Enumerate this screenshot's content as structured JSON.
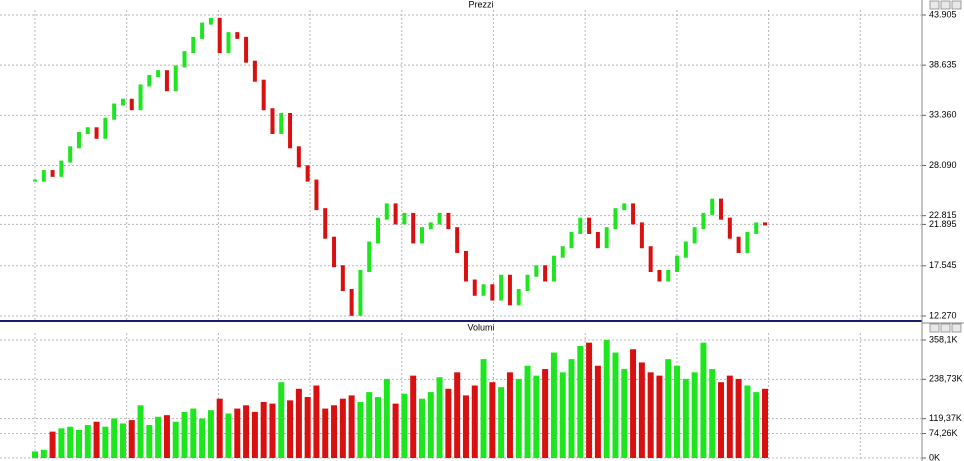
{
  "chart_data": [
    {
      "type": "price",
      "title": "Prezzi",
      "up_color": "#1ee61e",
      "down_color": "#d81010",
      "grid": true,
      "values": [
        26500,
        27500,
        27000,
        28500,
        30000,
        31500,
        32000,
        31000,
        33000,
        34500,
        35000,
        34000,
        36500,
        37500,
        38000,
        36000,
        38500,
        40000,
        41500,
        43000,
        43500,
        40000,
        42000,
        41500,
        39000,
        37000,
        34000,
        31500,
        33500,
        30000,
        28000,
        26500,
        23500,
        20500,
        17500,
        15000,
        12400,
        17000,
        20000,
        22500,
        24000,
        22000,
        23000,
        20000,
        21500,
        22000,
        23000,
        21500,
        19000,
        16000,
        14500,
        15500,
        14000,
        16500,
        13500,
        15000,
        16500,
        17500,
        16000,
        18500,
        19500,
        21000,
        22500,
        21000,
        19500,
        21500,
        23500,
        24000,
        22000,
        19500,
        17000,
        16000,
        17000,
        18500,
        20000,
        21500,
        23000,
        24500,
        22500,
        20500,
        19000,
        21000,
        22000,
        21895
      ],
      "ylim": [
        12270,
        43905
      ],
      "yticks": [
        {
          "value": 43905,
          "label": "43.905"
        },
        {
          "value": 38635,
          "label": "38.635"
        },
        {
          "value": 33360,
          "label": "33.360"
        },
        {
          "value": 28090,
          "label": "28.090"
        },
        {
          "value": 22815,
          "label": "22.815"
        },
        {
          "value": 21895,
          "label": "21.895"
        },
        {
          "value": 17545,
          "label": "17.545"
        },
        {
          "value": 12270,
          "label": "12.270"
        }
      ]
    },
    {
      "type": "volume",
      "title": "Volumi",
      "up_color": "#1ee61e",
      "down_color": "#d81010",
      "grid": true,
      "values": [
        20000,
        25000,
        80000,
        90000,
        95000,
        85000,
        100000,
        110000,
        95000,
        120000,
        105000,
        115000,
        160000,
        100000,
        125000,
        130000,
        110000,
        140000,
        150000,
        120000,
        145000,
        180000,
        135000,
        150000,
        160000,
        140000,
        170000,
        165000,
        230000,
        175000,
        210000,
        185000,
        220000,
        150000,
        160000,
        180000,
        190000,
        170000,
        200000,
        185000,
        240000,
        165000,
        195000,
        250000,
        180000,
        200000,
        245000,
        210000,
        260000,
        190000,
        220000,
        300000,
        230000,
        215000,
        260000,
        240000,
        280000,
        250000,
        270000,
        320000,
        260000,
        300000,
        340000,
        350000,
        280000,
        358000,
        320000,
        270000,
        330000,
        290000,
        260000,
        250000,
        300000,
        280000,
        240000,
        260000,
        350000,
        270000,
        230000,
        250000,
        240000,
        220000,
        200000,
        210000
      ],
      "ylim": [
        0,
        358100
      ],
      "yticks": [
        {
          "value": 358100,
          "label": "358,1K"
        },
        {
          "value": 238730,
          "label": "238,73K"
        },
        {
          "value": 119370,
          "label": "119,37K"
        },
        {
          "value": 74260,
          "label": "74,26K"
        },
        {
          "value": 0,
          "label": "0K"
        }
      ]
    }
  ]
}
